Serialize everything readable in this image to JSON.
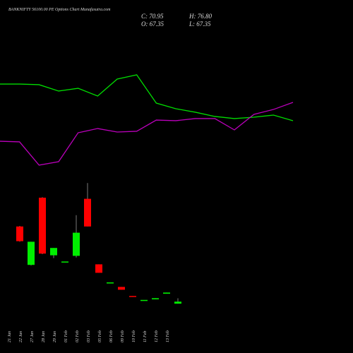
{
  "chart_data": [
    {
      "type": "candlestick",
      "title": "BANKNIFTY 56100.00 PE Options Chart Munafasutra.com",
      "stats": [
        "C: 70.95",
        "H: 76.80",
        "O: 67.35",
        "L: 67.35"
      ],
      "categories": [
        "21 Jan",
        "22 Jan",
        "27 Jan",
        "28 Jan",
        "29 Jan",
        "01 Feb",
        "02 Feb",
        "03 Feb",
        "05 Feb",
        "06 Feb",
        "09 Feb",
        "10 Feb",
        "11 Feb",
        "12 Feb",
        "13 Feb"
      ],
      "open": [
        204,
        136,
        255,
        153,
        142,
        152,
        253,
        137,
        104,
        97,
        81,
        74,
        75,
        85,
        67.35
      ],
      "close": [
        178,
        177,
        156,
        166,
        142,
        193,
        204,
        122,
        105,
        92,
        80,
        74,
        77,
        87,
        70.95
      ],
      "high": [
        205,
        177,
        256,
        166,
        142,
        224,
        281,
        137,
        105,
        97,
        81,
        74,
        77,
        87,
        76.8
      ],
      "low": [
        177,
        135,
        155,
        148,
        142,
        149,
        204,
        122,
        104,
        92,
        80,
        74,
        75,
        85,
        67.35
      ],
      "up_color": "#00ee00",
      "down_color": "#ff0000",
      "ylim": [
        55,
        290
      ]
    },
    {
      "type": "line",
      "ylim": [
        0,
        100
      ],
      "series": [
        {
          "color": "#00dd00",
          "values": [
            87.3,
            87.3,
            86.7,
            80.7,
            83.3,
            76,
            92,
            96,
            69.3,
            64,
            60.7,
            56.7,
            54.7,
            56,
            58,
            52.7
          ]
        },
        {
          "color": "#bb00bb",
          "values": [
            33.3,
            32.7,
            10.7,
            14,
            41.3,
            45.3,
            42,
            42.7,
            53.3,
            52.7,
            54.7,
            54.7,
            44,
            58.7,
            63.3,
            70
          ]
        }
      ]
    }
  ]
}
